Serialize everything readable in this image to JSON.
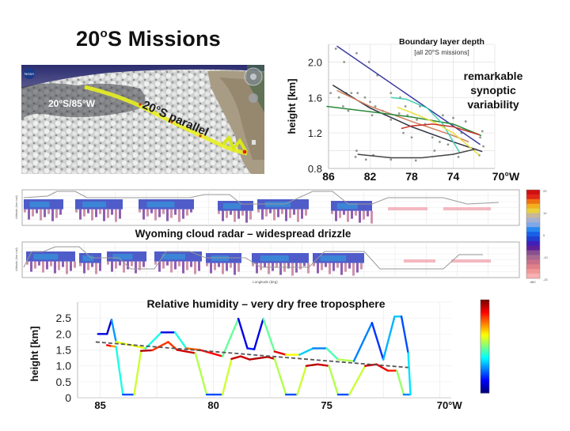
{
  "slide": {
    "title_main": "20",
    "title_sup": "o",
    "title_rest": "S Missions"
  },
  "satellite_image": {
    "point_label": "20°S/85°W",
    "parallel_label": "20°S parallel",
    "logo_label": "NASA"
  },
  "colors": {
    "title": "#111111",
    "track": "#e8f020",
    "rh_dashed": "#555555"
  },
  "radar_panel": {
    "caption": "Wyoming cloud radar – widespread drizzle",
    "xlabel": "Longitude (deg)",
    "ylabel": "Altitude (km msl)",
    "colorbar_unit": "dBZ",
    "colorbar_ticks": [
      "20",
      "10",
      "0",
      "-10",
      "-20"
    ],
    "colorbar_colors": [
      "#d01010",
      "#e02818",
      "#f07010",
      "#f0b020",
      "#e8d040",
      "#c8b898",
      "#a8b0d0",
      "#80a8e8",
      "#2888f0",
      "#1860e8",
      "#2040d0",
      "#4020b8",
      "#602098",
      "#885090",
      "#a86890",
      "#c87088",
      "#e08088",
      "#f09898",
      "#f8b0b0"
    ]
  },
  "chart_data": [
    {
      "type": "scatter",
      "title": "Boundary layer depth",
      "subtitle": "[all 20°S missions]",
      "annotation": [
        "remarkable",
        "synoptic",
        "variability"
      ],
      "xlabel": "",
      "ylabel": "height [km]",
      "xlim": [
        86,
        70
      ],
      "ylim": [
        0.8,
        2.2
      ],
      "x_ticks": [
        "86",
        "82",
        "78",
        "74",
        "70°W"
      ],
      "x_tick_values": [
        86,
        82,
        78,
        74,
        70
      ],
      "y_ticks": [
        "0.8",
        "1.2",
        "1.6",
        "2.0"
      ],
      "y_tick_values": [
        0.8,
        1.2,
        1.6,
        2.0
      ],
      "grid": true,
      "points": [
        {
          "x": 85.3,
          "y": 2.15
        },
        {
          "x": 84.5,
          "y": 2.0
        },
        {
          "x": 83.3,
          "y": 2.1
        },
        {
          "x": 82.1,
          "y": 2.0
        },
        {
          "x": 81.3,
          "y": 1.85
        },
        {
          "x": 85.8,
          "y": 1.65
        },
        {
          "x": 85.0,
          "y": 1.6
        },
        {
          "x": 84.3,
          "y": 1.65
        },
        {
          "x": 83.8,
          "y": 1.65
        },
        {
          "x": 83.2,
          "y": 1.65
        },
        {
          "x": 82.5,
          "y": 1.6
        },
        {
          "x": 82.0,
          "y": 1.55
        },
        {
          "x": 81.5,
          "y": 1.5
        },
        {
          "x": 84.6,
          "y": 1.5
        },
        {
          "x": 84.1,
          "y": 1.45
        },
        {
          "x": 81.8,
          "y": 1.4
        },
        {
          "x": 80.8,
          "y": 1.45
        },
        {
          "x": 80.0,
          "y": 1.35
        },
        {
          "x": 79.2,
          "y": 1.42
        },
        {
          "x": 78.4,
          "y": 1.4
        },
        {
          "x": 77.5,
          "y": 1.35
        },
        {
          "x": 76.7,
          "y": 1.3
        },
        {
          "x": 78.8,
          "y": 1.2
        },
        {
          "x": 78.0,
          "y": 1.15
        },
        {
          "x": 76.0,
          "y": 1.15
        },
        {
          "x": 75.3,
          "y": 1.1
        },
        {
          "x": 74.5,
          "y": 1.07
        },
        {
          "x": 75.0,
          "y": 1.4
        },
        {
          "x": 74.0,
          "y": 1.37
        },
        {
          "x": 72.8,
          "y": 1.33
        },
        {
          "x": 73.2,
          "y": 1.2
        },
        {
          "x": 71.2,
          "y": 1.22
        },
        {
          "x": 71.4,
          "y": 1.15
        },
        {
          "x": 71.1,
          "y": 1.05
        },
        {
          "x": 71.5,
          "y": 0.95
        },
        {
          "x": 80.0,
          "y": 1.65
        },
        {
          "x": 79.1,
          "y": 1.6
        },
        {
          "x": 78.6,
          "y": 1.5
        },
        {
          "x": 77.2,
          "y": 1.5
        },
        {
          "x": 75.8,
          "y": 1.0
        },
        {
          "x": 73.5,
          "y": 0.93
        },
        {
          "x": 83.3,
          "y": 1.0
        },
        {
          "x": 83.4,
          "y": 0.93
        },
        {
          "x": 82.4,
          "y": 0.9
        },
        {
          "x": 81.7,
          "y": 0.95
        },
        {
          "x": 80.0,
          "y": 0.9
        },
        {
          "x": 77.6,
          "y": 0.89
        }
      ],
      "series": [
        {
          "name": "mission-1",
          "color": "#3a3aa0",
          "x": [
            85.2,
            71.4
          ],
          "y": [
            2.18,
            1.07
          ]
        },
        {
          "name": "mission-2",
          "color": "#303040",
          "x": [
            85.6,
            82,
            78,
            74,
            71.2
          ],
          "y": [
            1.74,
            1.48,
            1.27,
            1.1,
            0.99
          ]
        },
        {
          "name": "mission-3",
          "color": "#d08060",
          "x": [
            85.2,
            82,
            78,
            74,
            72.5
          ],
          "y": [
            1.68,
            1.5,
            1.33,
            1.17,
            1.1
          ]
        },
        {
          "name": "mission-4",
          "color": "#2a8a3a",
          "x": [
            86.2,
            82,
            78,
            74,
            71.3
          ],
          "y": [
            1.5,
            1.44,
            1.38,
            1.3,
            1.17
          ]
        },
        {
          "name": "mission-5",
          "color": "#40d0b0",
          "x": [
            80,
            78.5,
            76.5,
            75,
            73.4
          ],
          "y": [
            1.6,
            1.58,
            1.48,
            1.3,
            0.98
          ]
        },
        {
          "name": "mission-6",
          "color": "#e8e040",
          "x": [
            79.4,
            78,
            76,
            74,
            71.5
          ],
          "y": [
            1.49,
            1.43,
            1.33,
            1.2,
            0.95
          ]
        },
        {
          "name": "mission-7",
          "color": "#c83028",
          "x": [
            79,
            78,
            76,
            74,
            71.5
          ],
          "y": [
            1.25,
            1.28,
            1.3,
            1.27,
            1.18
          ]
        },
        {
          "name": "mission-8",
          "color": "#444444",
          "x": [
            83.2,
            80,
            77,
            74,
            71.8
          ],
          "y": [
            0.96,
            0.92,
            0.92,
            0.96,
            1.02
          ]
        }
      ]
    },
    {
      "type": "line",
      "title": "Relative humidity – very dry free troposphere",
      "xlabel": "",
      "ylabel": "height [km]",
      "xlim": [
        86,
        69.5
      ],
      "ylim": [
        0,
        3.0
      ],
      "x_ticks": [
        "85",
        "80",
        "75",
        "70°W"
      ],
      "x_tick_values": [
        85,
        80,
        75,
        70
      ],
      "y_ticks": [
        "0",
        "0.5",
        "1.0",
        "1.5",
        "2.0",
        "2.5"
      ],
      "y_tick_values": [
        0,
        0.5,
        1.0,
        1.5,
        2.0,
        2.5
      ],
      "grid": true,
      "series": [
        {
          "name": "flight-track-1",
          "style": "colored-by-RH",
          "x": [
            84.7,
            84.5,
            84.3,
            84.0,
            83.5,
            83.2,
            82.7,
            82.0,
            81.6,
            80.8,
            80.3,
            79.6,
            79.2,
            78.8,
            78.4,
            77.6,
            77.3,
            76.8,
            76.3,
            75.9,
            75.4,
            74.9,
            74.5,
            74.0,
            73.3,
            72.8,
            72.3,
            71.9,
            71.6,
            71.3
          ],
          "y": [
            1.65,
            1.62,
            1.6,
            0.1,
            0.1,
            1.47,
            1.49,
            1.75,
            1.5,
            1.4,
            0.1,
            0.1,
            1.22,
            1.3,
            1.2,
            1.28,
            1.22,
            0.1,
            0.1,
            1.0,
            1.05,
            1.0,
            0.1,
            0.1,
            1.0,
            1.05,
            0.85,
            0.85,
            0.1,
            0.1
          ],
          "rh": [
            0.9,
            0.85,
            0.6,
            0.2,
            0.2,
            0.95,
            0.95,
            0.7,
            0.95,
            0.9,
            0.2,
            0.2,
            0.95,
            0.9,
            0.95,
            0.95,
            0.9,
            0.2,
            0.2,
            0.95,
            0.95,
            0.9,
            0.2,
            0.2,
            0.95,
            0.9,
            0.9,
            0.8,
            0.25,
            0.25
          ]
        },
        {
          "name": "flight-track-2",
          "style": "colored-by-RH",
          "x": [
            85.1,
            84.7,
            84.5,
            84.3,
            83.0,
            82.3,
            81.7,
            81.2,
            80.6,
            79.6,
            78.9,
            78.5,
            78.2,
            77.8,
            77.3,
            76.8,
            76.2,
            75.6,
            75.0,
            74.5,
            73.8,
            73.0,
            72.5,
            72.0,
            71.7,
            71.4,
            71.3
          ],
          "y": [
            2.0,
            2.0,
            2.45,
            1.75,
            1.55,
            2.05,
            2.05,
            1.55,
            1.5,
            1.3,
            2.48,
            1.55,
            1.52,
            2.48,
            1.45,
            1.35,
            1.35,
            1.55,
            1.55,
            1.2,
            1.15,
            2.35,
            1.2,
            2.55,
            2.55,
            1.4,
            0.1
          ],
          "rh": [
            0.1,
            0.1,
            0.05,
            0.5,
            0.7,
            0.1,
            0.1,
            0.7,
            0.85,
            0.9,
            0.05,
            0.15,
            0.15,
            0.05,
            0.9,
            0.9,
            0.35,
            0.3,
            0.2,
            0.7,
            0.4,
            0.1,
            0.25,
            0.35,
            0.3,
            0.1,
            0.6
          ]
        },
        {
          "name": "cloud-top-trend",
          "style": "dashed",
          "x": [
            85.2,
            71.4
          ],
          "y": [
            1.75,
            0.95
          ]
        }
      ],
      "colorbar": "jet"
    }
  ]
}
